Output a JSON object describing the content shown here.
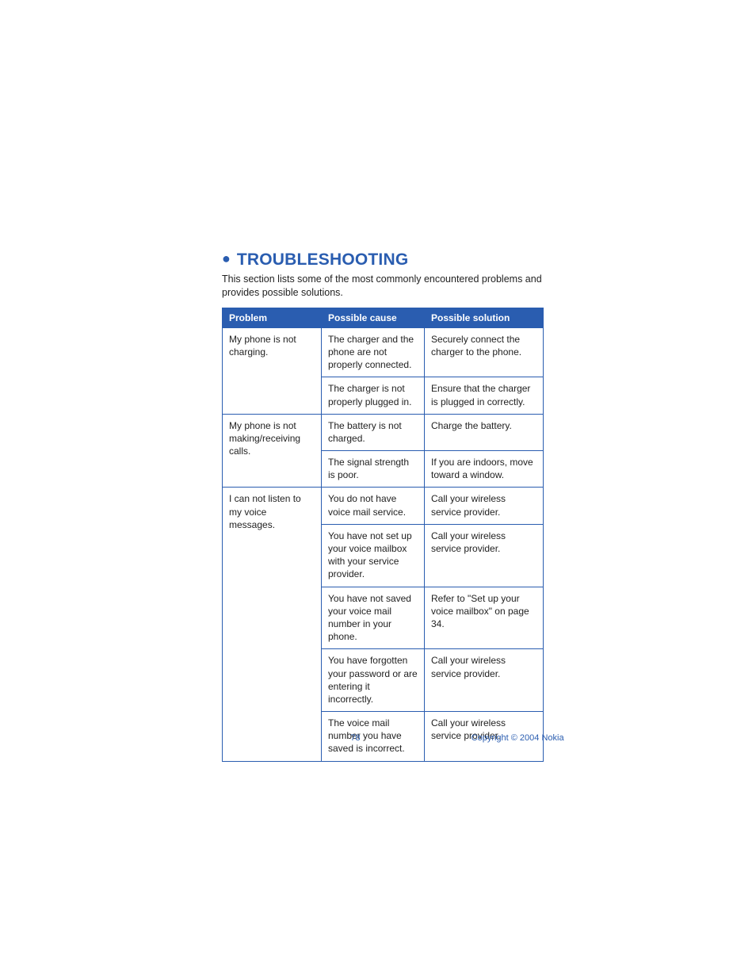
{
  "colors": {
    "accent": "#2a5db0",
    "text": "#222222",
    "background": "#ffffff"
  },
  "heading": "TROUBLESHOOTING",
  "intro": "This section lists some of the most commonly encountered problems and provides possible solutions.",
  "table": {
    "headers": {
      "problem": "Problem",
      "cause": "Possible cause",
      "solution": "Possible solution"
    },
    "rows": [
      {
        "problem": "My phone is not charging.",
        "cells": [
          {
            "cause": "The charger and the phone are not properly connected.",
            "solution": "Securely connect the charger to the phone."
          },
          {
            "cause": "The charger is not properly plugged in.",
            "solution": "Ensure that the charger is plugged in correctly."
          }
        ]
      },
      {
        "problem": "My phone is not making/receiving calls.",
        "cells": [
          {
            "cause": "The battery is not charged.",
            "solution": "Charge the battery."
          },
          {
            "cause": "The signal strength is poor.",
            "solution": "If you are indoors, move toward a window."
          }
        ]
      },
      {
        "problem": "I can not listen to my voice messages.",
        "cells": [
          {
            "cause": "You do not have voice mail service.",
            "solution": "Call your wireless service provider."
          },
          {
            "cause": "You have not set up your voice mailbox with your service provider.",
            "solution": "Call your wireless service provider."
          },
          {
            "cause": "You have not saved your voice mail number in your phone.",
            "solution": "Refer to \"Set up your voice mailbox\" on page 34."
          },
          {
            "cause": "You have forgotten your password or are entering it incorrectly.",
            "solution": "Call your wireless service provider."
          },
          {
            "cause": "The voice mail number you have saved is incorrect.",
            "solution": "Call your wireless service provider."
          }
        ]
      }
    ]
  },
  "footer": {
    "page_number": "78",
    "copyright": "Copyright © 2004 Nokia"
  }
}
